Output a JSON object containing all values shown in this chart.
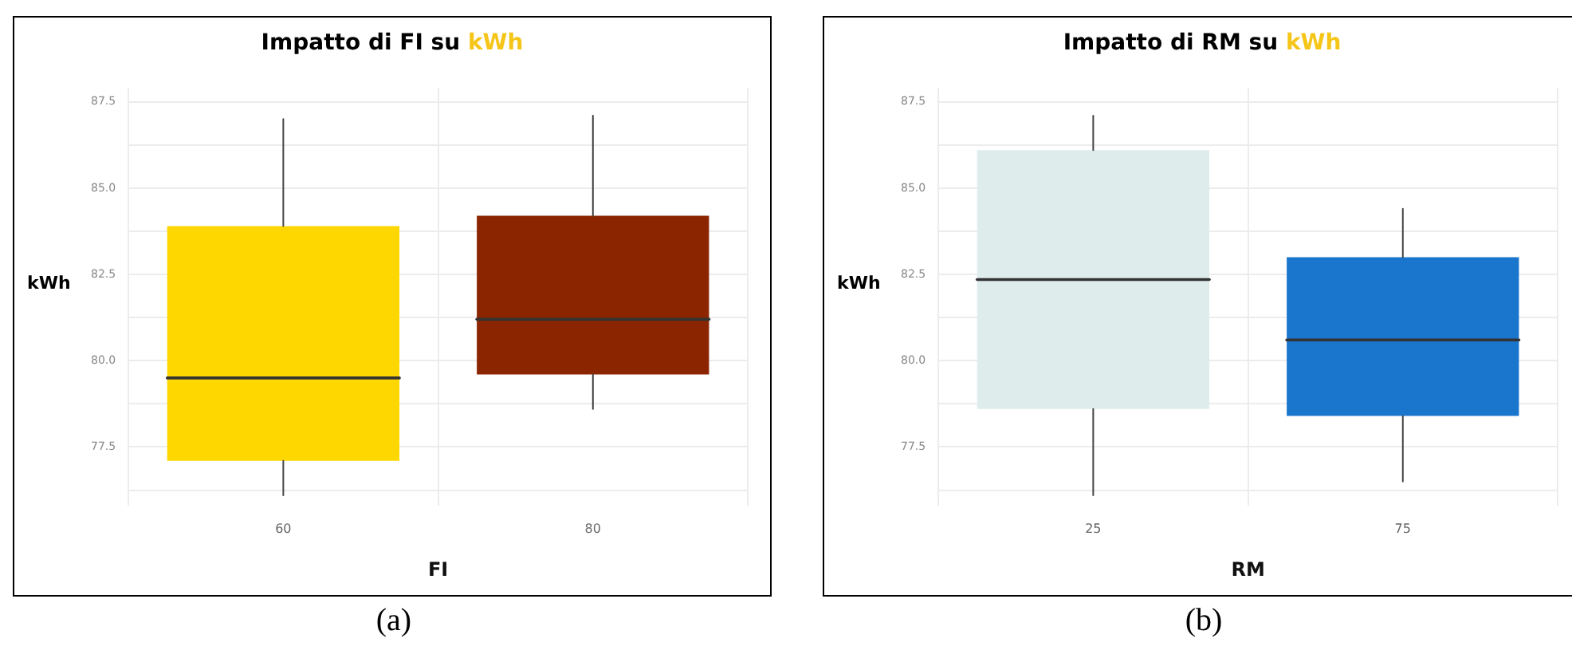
{
  "chart_data": [
    {
      "type": "box",
      "title": "Impatto di FI su kWh",
      "xlabel": "FI",
      "ylabel": "kWh",
      "categories": [
        "60",
        "80"
      ],
      "colors": [
        "#ffd700",
        "#8b2500"
      ],
      "boxes": [
        {
          "low": 76.1,
          "q1": 77.1,
          "median": 79.5,
          "q3": 83.9,
          "high": 87.0
        },
        {
          "low": 78.6,
          "q1": 79.6,
          "median": 81.2,
          "q3": 84.2,
          "high": 87.1
        }
      ],
      "ylim": [
        75.8,
        87.9
      ],
      "yticks": [
        {
          "value": 76.25,
          "label": null
        },
        77.5,
        {
          "value": 78.75,
          "label": null
        },
        {
          "value": 80,
          "label": "80.0"
        },
        {
          "value": 81.25,
          "label": null
        },
        82.5,
        {
          "value": 83.75,
          "label": null
        },
        {
          "value": 85,
          "label": "85.0"
        },
        {
          "value": 86.25,
          "label": null
        },
        87.5
      ],
      "grid": true,
      "legend": false,
      "annotations": [
        "(a)"
      ]
    },
    {
      "type": "box",
      "title": "Impatto di RM su kWh",
      "xlabel": "RM",
      "ylabel": "kWh",
      "categories": [
        "25",
        "75"
      ],
      "colors": [
        "#dfecec",
        "#1a75cc"
      ],
      "boxes": [
        {
          "low": 76.1,
          "q1": 78.6,
          "median": 82.35,
          "q3": 86.1,
          "high": 87.1
        },
        {
          "low": 76.5,
          "q1": 78.4,
          "median": 80.6,
          "q3": 83.0,
          "high": 84.4
        }
      ],
      "ylim": [
        75.8,
        87.9
      ],
      "yticks": [
        {
          "value": 76.25,
          "label": null
        },
        77.5,
        {
          "value": 78.75,
          "label": null
        },
        {
          "value": 80,
          "label": "80.0"
        },
        {
          "value": 81.25,
          "label": null
        },
        82.5,
        {
          "value": 83.75,
          "label": null
        },
        {
          "value": 85,
          "label": "85.0"
        },
        {
          "value": 86.25,
          "label": null
        },
        87.5
      ],
      "grid": true,
      "legend": false,
      "annotations": [
        "(b)"
      ]
    }
  ]
}
